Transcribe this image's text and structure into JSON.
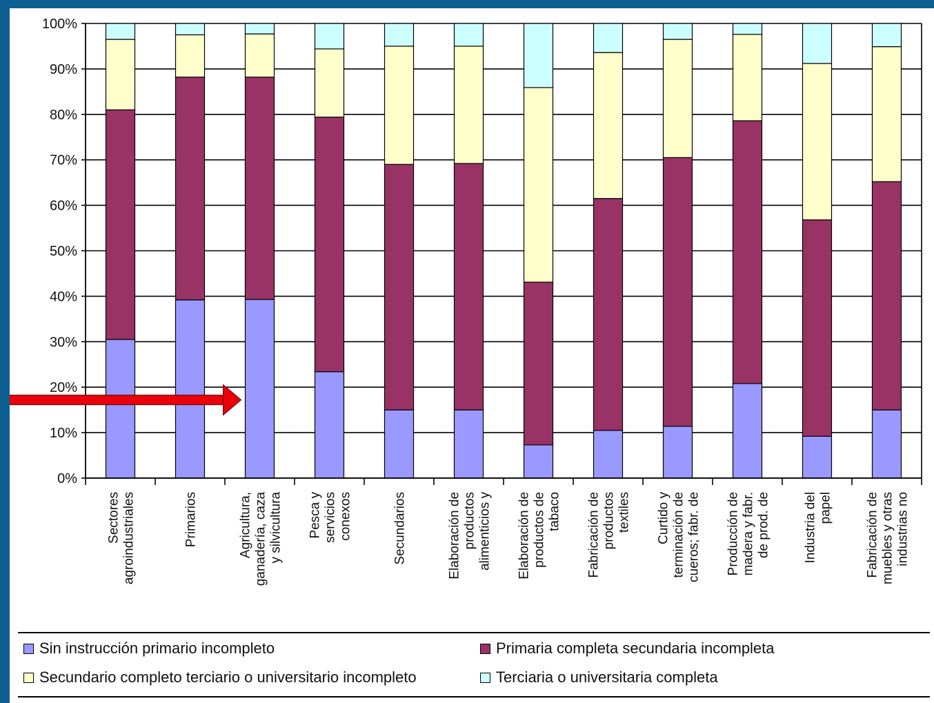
{
  "chart_data": {
    "type": "bar",
    "stacked": true,
    "percent": true,
    "ylim": [
      0,
      100
    ],
    "yticks": [
      "0%",
      "10%",
      "20%",
      "30%",
      "40%",
      "50%",
      "60%",
      "70%",
      "80%",
      "90%",
      "100%"
    ],
    "grid": true,
    "categories": [
      [
        "Sectores",
        "agroindustriales"
      ],
      [
        "Primarios"
      ],
      [
        "Agricultura,",
        "ganadería, caza",
        "y silvicultura"
      ],
      [
        "Pesca y",
        "servicios",
        "conexos"
      ],
      [
        "Secundarios"
      ],
      [
        "Elaboración de",
        "productos",
        "alimenticios y"
      ],
      [
        "Elaboración de",
        "productos de",
        "tabaco"
      ],
      [
        "Fabricación de",
        "productos",
        "textiles"
      ],
      [
        "Curtido y",
        "terminación de",
        "cueros; fabr. de"
      ],
      [
        "Producción de",
        "madera y fabr.",
        "de prod. de"
      ],
      [
        "Industria del",
        "papel"
      ],
      [
        "Fabricación de",
        "muebles y otras",
        "industrias no"
      ]
    ],
    "series": [
      {
        "name": "Sin instrucción primario incompleto",
        "color": "#9999ff",
        "values": [
          30.5,
          39.2,
          39.3,
          23.4,
          15.0,
          15.0,
          7.3,
          10.5,
          11.4,
          20.8,
          9.2,
          15.0
        ]
      },
      {
        "name": "Primaria completa secundaria incompleta",
        "color": "#993366",
        "values": [
          50.5,
          49.0,
          48.9,
          56.0,
          54.0,
          54.2,
          35.8,
          51.0,
          59.1,
          57.8,
          47.6,
          50.2
        ]
      },
      {
        "name": "Secundario completo terciario o universitario incompleto",
        "color": "#ffffcc",
        "values": [
          15.5,
          9.3,
          9.5,
          15.0,
          26.0,
          25.8,
          42.8,
          32.1,
          26.0,
          19.0,
          34.4,
          29.7
        ]
      },
      {
        "name": "Terciaria o universitaria completa",
        "color": "#ccffff",
        "values": [
          3.5,
          2.5,
          2.3,
          5.6,
          5.0,
          5.0,
          14.1,
          6.4,
          3.5,
          2.4,
          8.8,
          5.1
        ]
      }
    ],
    "legend_position": "bottom",
    "annotation": {
      "type": "arrow",
      "color": "#e8000b",
      "points_to_category_index": 2,
      "y_value": 17.5
    }
  }
}
